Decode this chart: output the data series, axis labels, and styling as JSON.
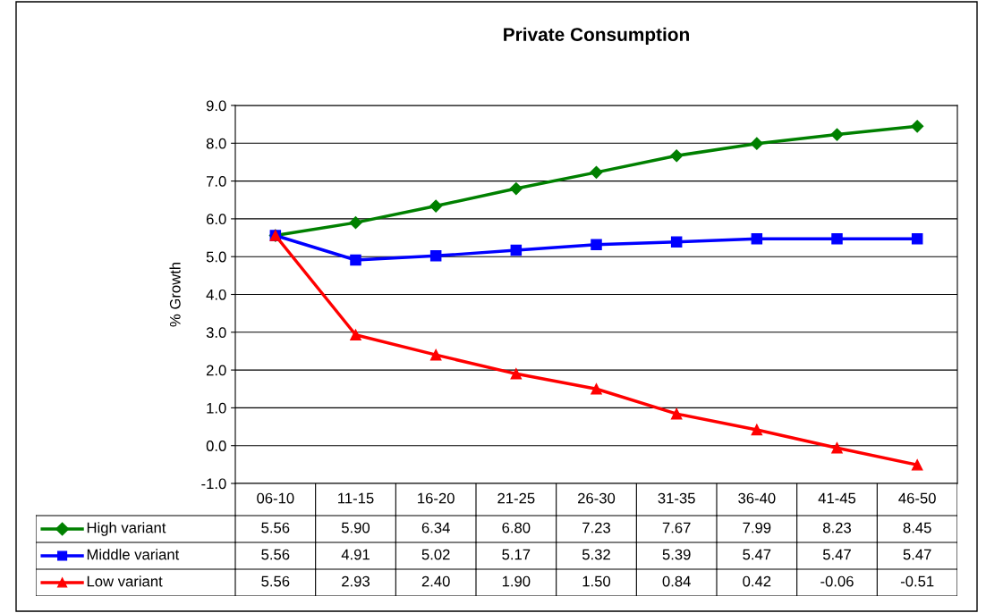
{
  "chart_data": {
    "type": "line",
    "title": "Private Consumption",
    "ylabel": "% Growth",
    "categories": [
      "06-10",
      "11-15",
      "16-20",
      "21-25",
      "26-30",
      "31-35",
      "36-40",
      "41-45",
      "46-50"
    ],
    "series": [
      {
        "name": "High variant",
        "color": "#008000",
        "marker": "diamond",
        "values": [
          5.56,
          5.9,
          6.34,
          6.8,
          7.23,
          7.67,
          7.99,
          8.23,
          8.45
        ],
        "value_labels": [
          "5.56",
          "5.90",
          "6.34",
          "6.80",
          "7.23",
          "7.67",
          "7.99",
          "8.23",
          "8.45"
        ]
      },
      {
        "name": "Middle variant",
        "color": "#0000ff",
        "marker": "square",
        "values": [
          5.56,
          4.91,
          5.02,
          5.17,
          5.32,
          5.39,
          5.47,
          5.47,
          5.47
        ],
        "value_labels": [
          "5.56",
          "4.91",
          "5.02",
          "5.17",
          "5.32",
          "5.39",
          "5.47",
          "5.47",
          "5.47"
        ]
      },
      {
        "name": "Low variant",
        "color": "#ff0000",
        "marker": "triangle",
        "values": [
          5.56,
          2.93,
          2.4,
          1.9,
          1.5,
          0.84,
          0.42,
          -0.06,
          -0.51
        ],
        "value_labels": [
          "5.56",
          "2.93",
          "2.40",
          "1.90",
          "1.50",
          "0.84",
          "0.42",
          "-0.06",
          "-0.51"
        ]
      }
    ],
    "ylim": [
      -1,
      9
    ],
    "yticks": [
      {
        "value": -1,
        "label": "-1.0"
      },
      {
        "value": 0,
        "label": "0.0"
      },
      {
        "value": 1,
        "label": "1.0"
      },
      {
        "value": 2,
        "label": "2.0"
      },
      {
        "value": 3,
        "label": "3.0"
      },
      {
        "value": 4,
        "label": "4.0"
      },
      {
        "value": 5,
        "label": "5.0"
      },
      {
        "value": 6,
        "label": "6.0"
      },
      {
        "value": 7,
        "label": "7.0"
      },
      {
        "value": 8,
        "label": "8.0"
      },
      {
        "value": 9,
        "label": "9.0"
      }
    ],
    "grid": "y",
    "legend": "bottom left",
    "line_style": "solid"
  }
}
